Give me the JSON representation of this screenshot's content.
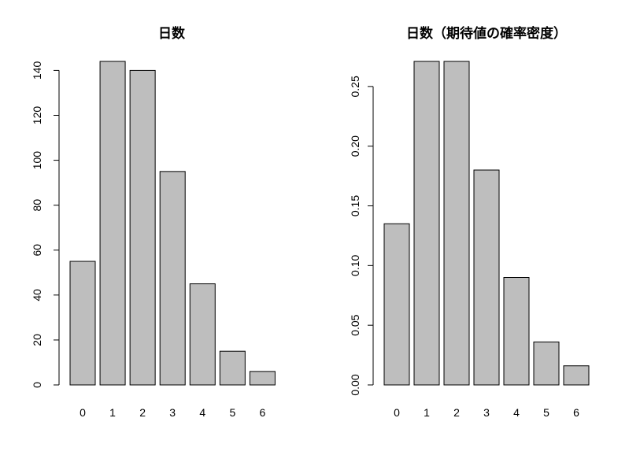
{
  "chart_data": [
    {
      "type": "bar",
      "title": "日数",
      "categories": [
        "0",
        "1",
        "2",
        "3",
        "4",
        "5",
        "6"
      ],
      "values": [
        55,
        144,
        140,
        95,
        45,
        15,
        6
      ],
      "ylim": [
        0,
        144
      ],
      "yticks": [
        0,
        20,
        40,
        60,
        80,
        100,
        120,
        140
      ],
      "ytick_labels": [
        "0",
        "20",
        "40",
        "60",
        "80",
        "100",
        "120",
        "140"
      ],
      "xlabel": "",
      "ylabel": "",
      "grid": false,
      "colors": {
        "bar": "#bebebe",
        "stroke": "#000000"
      }
    },
    {
      "type": "bar",
      "title": "日数（期待値の確率密度）",
      "categories": [
        "0",
        "1",
        "2",
        "3",
        "4",
        "5",
        "6"
      ],
      "values": [
        0.135,
        0.271,
        0.271,
        0.18,
        0.09,
        0.036,
        0.016
      ],
      "ylim": [
        0,
        0.271
      ],
      "yticks": [
        0,
        0.05,
        0.1,
        0.15,
        0.2,
        0.25
      ],
      "ytick_labels": [
        "0.00",
        "0.05",
        "0.10",
        "0.15",
        "0.20",
        "0.25"
      ],
      "xlabel": "",
      "ylabel": "",
      "grid": false,
      "colors": {
        "bar": "#bebebe",
        "stroke": "#000000"
      }
    }
  ]
}
